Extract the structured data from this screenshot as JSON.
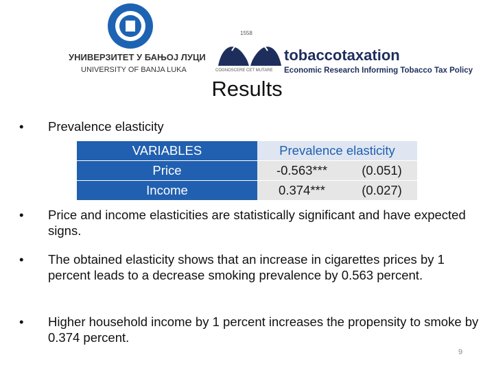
{
  "header": {
    "university_logo": {
      "name_cyrillic": "УНИВЕРЗИТЕТ У БАЊОЈ ЛУЦИ",
      "name_latin": "UNIVERSITY OF BANJA LUKA"
    },
    "partner_logo": {
      "year": "1558",
      "motto": "COGNOSCERE CET MUTARE",
      "name": "tobaccotaxation",
      "tagline": "Economic Research Informing Tobacco Tax Policy"
    }
  },
  "title": "Results",
  "bullets": [
    "Prevalence elasticity",
    "Price and income elasticities are statistically significant and have expected signs.",
    "The obtained elasticity shows that an increase in cigarettes prices by 1 percent leads to a decrease smoking prevalence by 0.563 percent.",
    "Higher household income by 1 percent increases the propensity to smoke by 0.374 percent."
  ],
  "table": {
    "header": [
      "VARIABLES",
      "Prevalence elasticity"
    ],
    "rows": [
      [
        "Price",
        "-0.563***",
        "(0.051)"
      ],
      [
        "Income",
        "0.374***",
        "(0.027)"
      ]
    ]
  },
  "page_number": "9"
}
